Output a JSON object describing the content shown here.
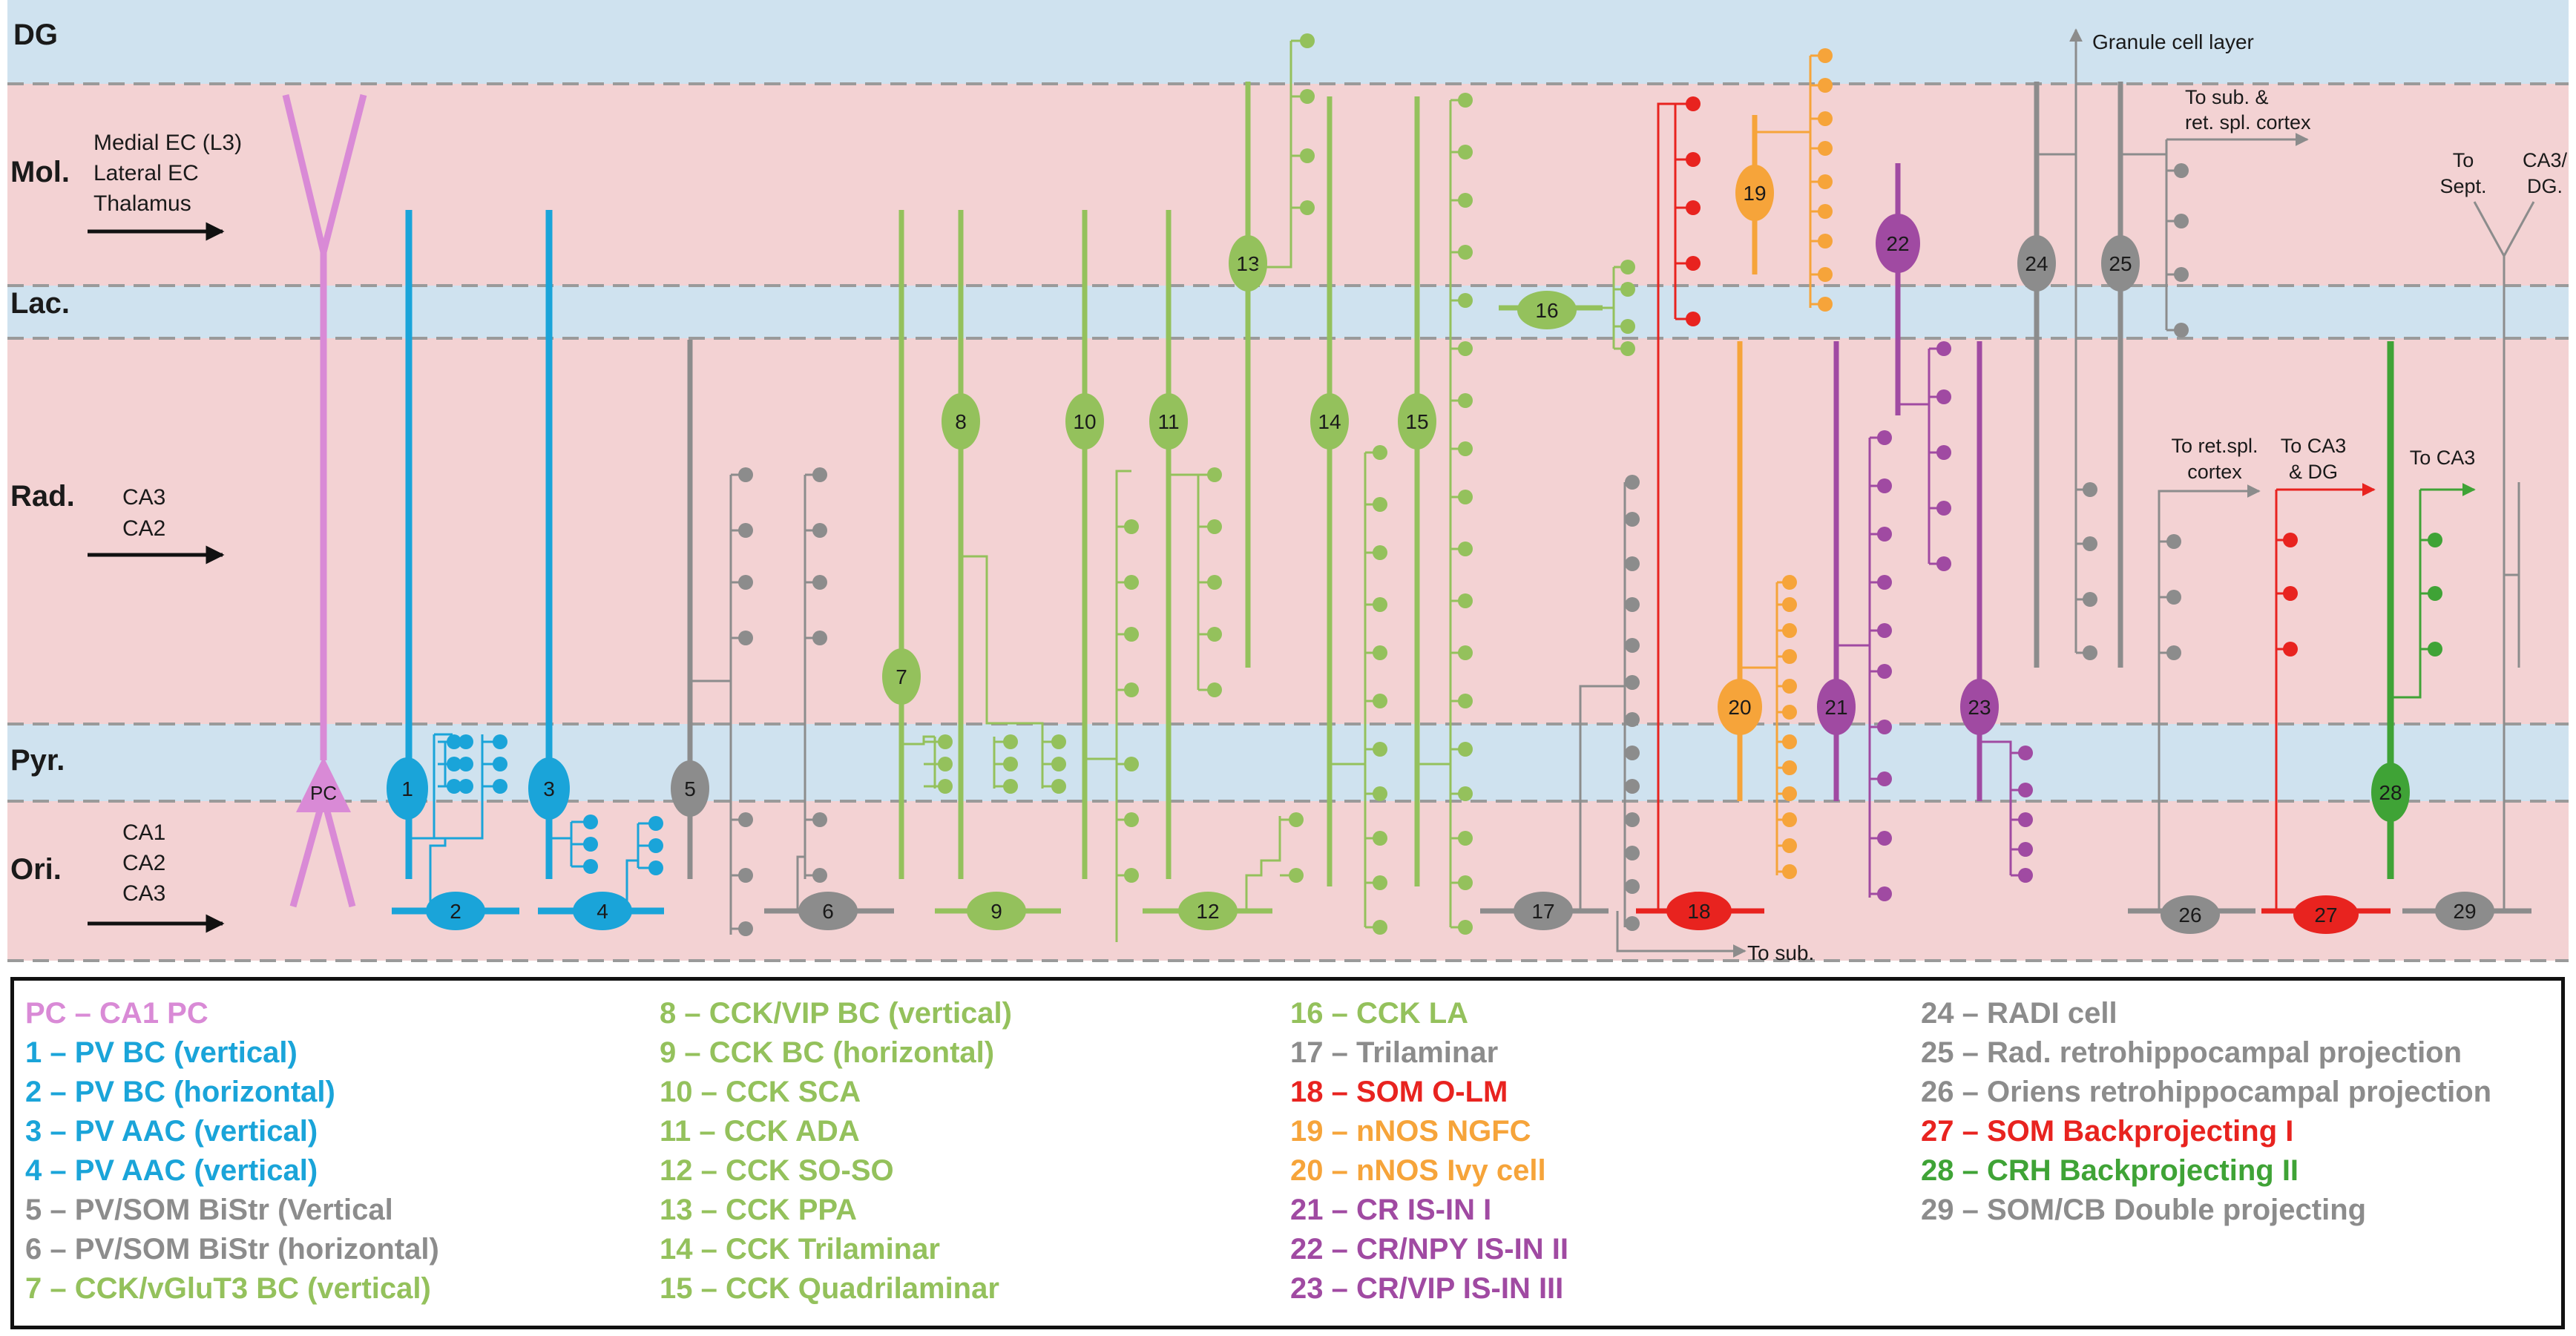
{
  "colors": {
    "pink": "#d98ad6",
    "blue": "#1aa4d9",
    "gray": "#8c8c8c",
    "lightgreen": "#94c15c",
    "red": "#e8231f",
    "orange": "#f6a43a",
    "purple": "#a04aa2",
    "green": "#3fa336",
    "band_blue": "#cfe2ef",
    "band_pink": "#f3d2d3"
  },
  "layers": [
    {
      "key": "DG",
      "label": "DG",
      "band": "band_blue"
    },
    {
      "key": "Mol",
      "label": "Mol.",
      "band": "band_pink"
    },
    {
      "key": "Lac",
      "label": "Lac.",
      "band": "band_blue"
    },
    {
      "key": "Rad",
      "label": "Rad.",
      "band": "band_pink"
    },
    {
      "key": "Pyr",
      "label": "Pyr.",
      "band": "band_blue"
    },
    {
      "key": "Ori",
      "label": "Ori.",
      "band": "band_pink"
    }
  ],
  "inputs": {
    "mol": [
      "Medial EC (L3)",
      "Lateral EC",
      "Thalamus"
    ],
    "rad": [
      "CA3",
      "CA2"
    ],
    "ori": [
      "CA1",
      "CA2",
      "CA3"
    ]
  },
  "annotations": {
    "granule": "Granule cell layer",
    "to_sub_ret_1": "To sub. &",
    "to_sub_ret_2": "ret. spl. cortex",
    "to_sept_1": "To",
    "to_sept_2": "Sept.",
    "to_ca3dg_1": "CA3/",
    "to_ca3dg_2": "DG.",
    "to_ret_spl_1": "To ret.spl.",
    "to_ret_spl_2": "cortex",
    "to_ca3_dg_1": "To CA3",
    "to_ca3_dg_2": "& DG",
    "to_ca3": "To CA3",
    "to_sub": "To sub."
  },
  "cells": {
    "pc": "PC",
    "c1": "1",
    "c2": "2",
    "c3": "3",
    "c4": "4",
    "c5": "5",
    "c6": "6",
    "c7": "7",
    "c8": "8",
    "c9": "9",
    "c10": "10",
    "c11": "11",
    "c12": "12",
    "c13": "13",
    "c14": "14",
    "c15": "15",
    "c16": "16",
    "c17": "17",
    "c18": "18",
    "c19": "19",
    "c20": "20",
    "c21": "21",
    "c22": "22",
    "c23": "23",
    "c24": "24",
    "c25": "25",
    "c26": "26",
    "c27": "27",
    "c28": "28",
    "c29": "29"
  },
  "legend": [
    [
      {
        "text": "PC – CA1 PC",
        "color": "pink"
      },
      {
        "text": "1 – PV BC (vertical)",
        "color": "blue"
      },
      {
        "text": "2 – PV BC (horizontal)",
        "color": "blue"
      },
      {
        "text": "3 – PV AAC (vertical)",
        "color": "blue"
      },
      {
        "text": "4 – PV AAC (vertical)",
        "color": "blue"
      },
      {
        "text": "5 – PV/SOM BiStr (Vertical",
        "color": "gray"
      },
      {
        "text": "6 – PV/SOM BiStr (horizontal)",
        "color": "gray"
      },
      {
        "text": "7 – CCK/vGluT3 BC (vertical)",
        "color": "lightgreen"
      }
    ],
    [
      {
        "text": "8 – CCK/VIP BC (vertical)",
        "color": "lightgreen"
      },
      {
        "text": "9 – CCK BC (horizontal)",
        "color": "lightgreen"
      },
      {
        "text": "10 – CCK SCA",
        "color": "lightgreen"
      },
      {
        "text": "11 – CCK ADA",
        "color": "lightgreen"
      },
      {
        "text": "12 – CCK SO-SO",
        "color": "lightgreen"
      },
      {
        "text": "13 – CCK PPA",
        "color": "lightgreen"
      },
      {
        "text": "14 – CCK Trilaminar",
        "color": "lightgreen"
      },
      {
        "text": "15 – CCK Quadrilaminar",
        "color": "lightgreen"
      }
    ],
    [
      {
        "text": "16 – CCK LA",
        "color": "lightgreen"
      },
      {
        "text": "17 – Trilaminar",
        "color": "gray"
      },
      {
        "text": "18 – SOM O-LM",
        "color": "red"
      },
      {
        "text": "19 – nNOS NGFC",
        "color": "orange"
      },
      {
        "text": "20 – nNOS Ivy cell",
        "color": "orange"
      },
      {
        "text": "21 – CR IS-IN I",
        "color": "purple"
      },
      {
        "text": "22 – CR/NPY IS-IN II",
        "color": "purple"
      },
      {
        "text": "23 – CR/VIP IS-IN III",
        "color": "purple"
      }
    ],
    [
      {
        "text": "24 – RADI cell",
        "color": "gray"
      },
      {
        "text": "25 – Rad. retrohippocampal projection",
        "color": "gray"
      },
      {
        "text": "26 – Oriens retrohippocampal projection",
        "color": "gray"
      },
      {
        "text": "27 – SOM Backprojecting I",
        "color": "red"
      },
      {
        "text": "28 – CRH Backprojecting II",
        "color": "green"
      },
      {
        "text": "29 – SOM/CB Double projecting",
        "color": "gray"
      }
    ]
  ]
}
